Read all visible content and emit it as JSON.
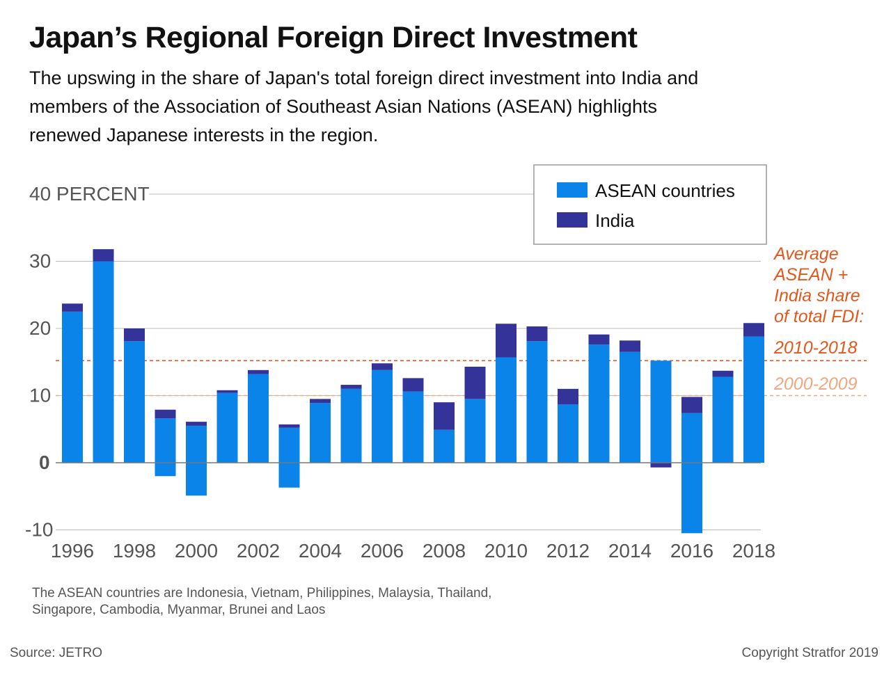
{
  "title": "Japan’s Regional Foreign Direct Investment",
  "subtitle": "The upswing in the share of Japan's total foreign direct investment into India and members of the Association of Southeast Asian Nations (ASEAN) highlights renewed Japanese interests in the region.",
  "footnote": "The ASEAN countries are Indonesia, Vietnam, Philippines, Malaysia, Thailand, Singapore, Cambodia, Myanmar, Brunei and Laos",
  "source": "Source: JETRO",
  "copyright": "Copyright Stratfor 2019",
  "colors": {
    "asean": "#0a84e8",
    "india": "#33339a",
    "avg_2010_2018": "#e4571b",
    "avg_2000_2009": "#f0a77f",
    "grid": "#bbbbbb",
    "axis_text": "#555555"
  },
  "chart_data": {
    "type": "bar",
    "stacked": true,
    "y_unit_label": "40 PERCENT",
    "ylim": [
      -10,
      40
    ],
    "yticks": [
      -10,
      0,
      10,
      20,
      30,
      40
    ],
    "ytick_labels": [
      "-10",
      "0",
      "10",
      "20",
      "30",
      "40 PERCENT"
    ],
    "grid": true,
    "legend_position": "top-right",
    "categories": [
      1996,
      1997,
      1998,
      1999,
      2000,
      2001,
      2002,
      2003,
      2004,
      2005,
      2006,
      2007,
      2008,
      2009,
      2010,
      2011,
      2012,
      2013,
      2014,
      2015,
      2016,
      2017,
      2018
    ],
    "xtick_labels": [
      "1996",
      "1998",
      "2000",
      "2002",
      "2004",
      "2006",
      "2008",
      "2010",
      "2012",
      "2014",
      "2016",
      "2018"
    ],
    "series": [
      {
        "name": "ASEAN countries",
        "values": [
          22.5,
          30.0,
          18.1,
          6.6,
          5.5,
          10.4,
          13.2,
          5.2,
          8.9,
          11.0,
          13.8,
          10.6,
          4.9,
          9.5,
          15.7,
          18.1,
          8.7,
          17.6,
          16.5,
          15.2,
          7.4,
          12.8,
          18.8
        ],
        "negative_values": [
          0,
          0,
          0,
          -2.0,
          -4.9,
          0,
          0,
          -3.7,
          0,
          0,
          0,
          0,
          0,
          0,
          0,
          0,
          0,
          0,
          0,
          0,
          -10.5,
          0,
          0
        ]
      },
      {
        "name": "India",
        "values": [
          1.2,
          1.8,
          1.9,
          1.3,
          0.6,
          0.4,
          0.6,
          0.5,
          0.6,
          0.6,
          1.0,
          2.0,
          4.1,
          4.8,
          5.0,
          2.2,
          2.3,
          1.5,
          1.7,
          0,
          2.4,
          0.9,
          2.0
        ],
        "negative_values": [
          0,
          0,
          0,
          0,
          0,
          0,
          0,
          0,
          0,
          0,
          0,
          0,
          0,
          0,
          0,
          0,
          0,
          0,
          0,
          -0.7,
          0,
          0,
          0
        ]
      }
    ],
    "reference_lines": [
      {
        "label": "2010-2018",
        "value": 15.2
      },
      {
        "label": "2000-2009",
        "value": 10.0
      }
    ],
    "annotation": "Average ASEAN + India share of total FDI:"
  }
}
